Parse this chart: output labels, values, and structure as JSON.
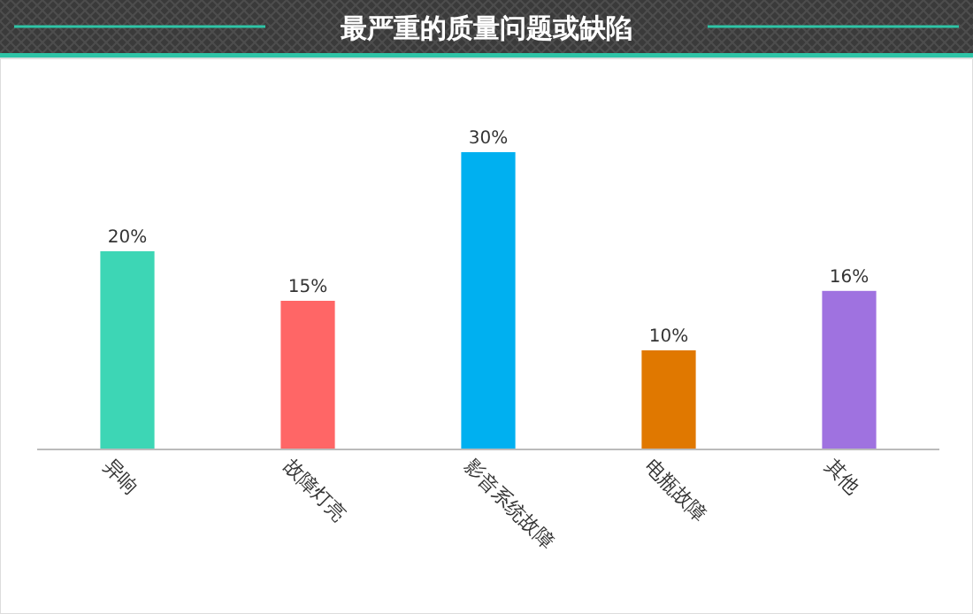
{
  "chart_data": {
    "type": "bar",
    "title": "最严重的质量问题或缺陷",
    "categories": [
      "异响",
      "故障灯亮",
      "影音系统故障",
      "电瓶故障",
      "其他"
    ],
    "values": [
      20,
      15,
      30,
      10,
      16
    ],
    "colors": [
      "#3dd6b5",
      "#ff6666",
      "#00b0f0",
      "#e07800",
      "#9f72e0"
    ],
    "value_labels": [
      "20%",
      "15%",
      "30%",
      "10%",
      "16%"
    ]
  }
}
